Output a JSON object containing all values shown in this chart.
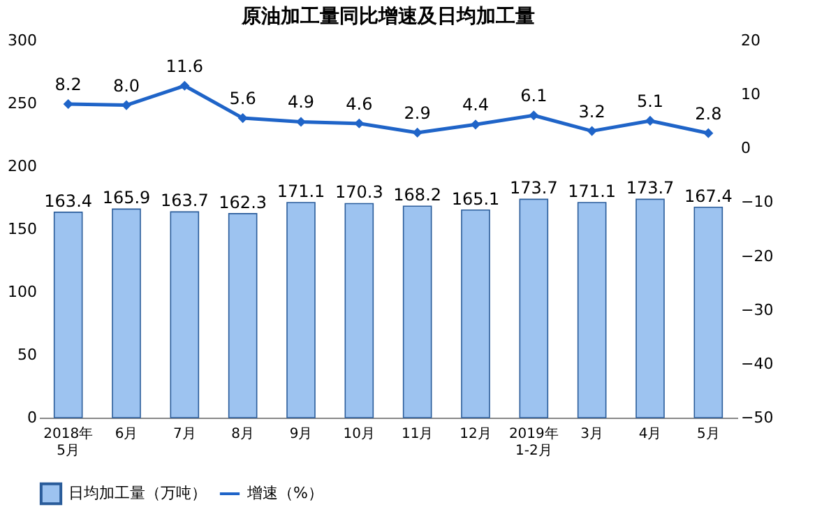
{
  "chart_data": {
    "type": "bar",
    "title": "原油加工量同比增速及日均加工量",
    "categories": [
      "2018年\n5月",
      "6月",
      "7月",
      "8月",
      "9月",
      "10月",
      "11月",
      "12月",
      "2019年\n1-2月",
      "3月",
      "4月",
      "5月"
    ],
    "series": [
      {
        "name": "日均加工量（万吨）",
        "color": "#9dc3f0",
        "values": [
          163.4,
          165.9,
          163.7,
          162.3,
          171.1,
          170.3,
          168.2,
          165.1,
          173.7,
          171.1,
          173.7,
          167.4
        ]
      },
      {
        "name": "增速（%）",
        "type": "line",
        "axis": "y2",
        "color": "#1f64c8",
        "marker": "diamond",
        "values": [
          8.2,
          8.0,
          11.6,
          5.6,
          4.9,
          4.6,
          2.9,
          4.4,
          6.1,
          3.2,
          5.1,
          2.8
        ],
        "value_labels": [
          "8.2",
          "8.0",
          "11.6",
          "5.6",
          "4.9",
          "4.6",
          "2.9",
          "4.4",
          "6.1",
          "3.2",
          "5.1",
          "2.8"
        ]
      }
    ],
    "ylim": [
      0,
      300
    ],
    "yticks": [
      0,
      50,
      100,
      150,
      200,
      250,
      300
    ],
    "y2lim": [
      -50,
      20
    ],
    "y2ticks": [
      -50,
      -40,
      -30,
      -20,
      -10,
      0,
      10,
      20
    ],
    "data_labels": true,
    "legend": "bottom",
    "grid": false
  }
}
